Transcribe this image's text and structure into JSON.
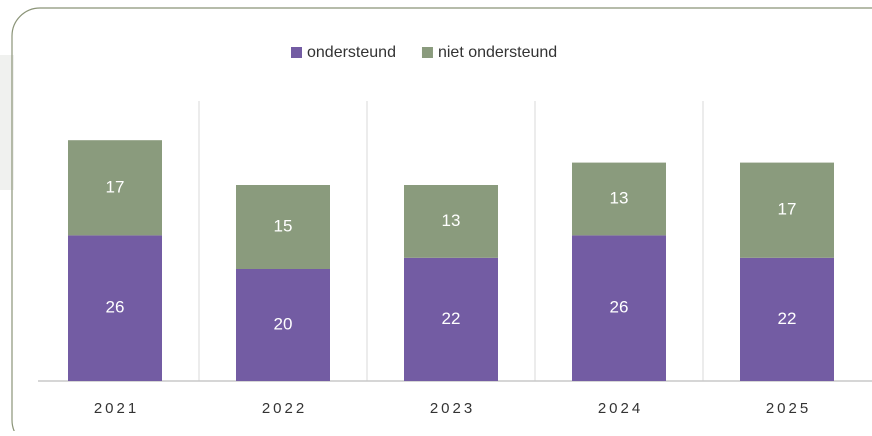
{
  "chart_data": {
    "type": "stacked_bar",
    "categories": [
      "2021",
      "2022",
      "2023",
      "2024",
      "2025"
    ],
    "series": [
      {
        "name": "ondersteund",
        "color": "#735ca3",
        "values": [
          26,
          20,
          22,
          26,
          22
        ]
      },
      {
        "name": "niet ondersteund",
        "color": "#8a9b7d",
        "values": [
          17,
          15,
          13,
          13,
          17
        ]
      }
    ],
    "ylim": [
      0,
      50
    ]
  }
}
